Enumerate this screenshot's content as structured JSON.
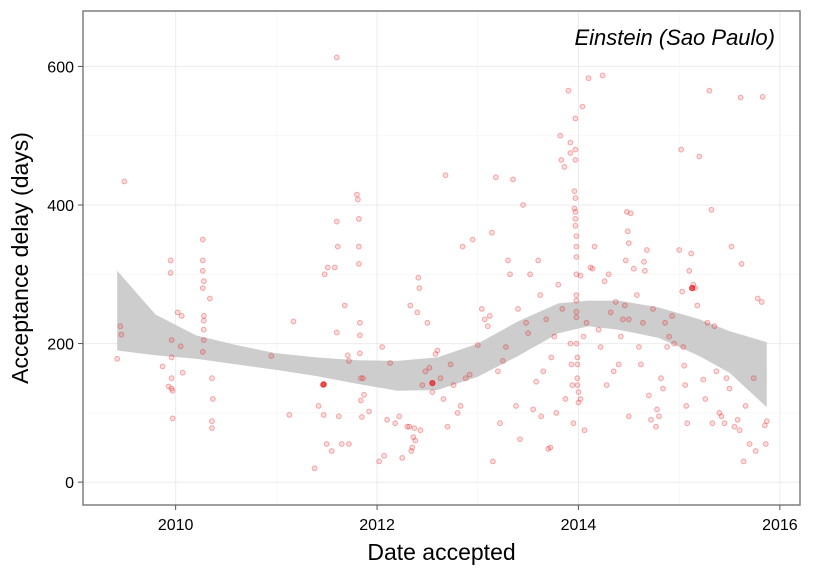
{
  "chart_data": {
    "type": "scatter",
    "annotation": "Einstein (Sao Paulo)",
    "xlabel": "Date accepted",
    "ylabel": "Acceptance delay (days)",
    "xlim": [
      2009.08,
      2016.2
    ],
    "ylim": [
      -33,
      680
    ],
    "x_ticks": [
      2010,
      2012,
      2014,
      2016
    ],
    "y_ticks": [
      0,
      200,
      400,
      600
    ],
    "grid": true,
    "colors": {
      "points": "#e41a1c",
      "ribbon": "#c8c8c8",
      "panel_border": "#7f7f7f",
      "grid": "#ebebeb"
    },
    "points": [
      [
        2009.42,
        178
      ],
      [
        2009.45,
        225
      ],
      [
        2009.46,
        213
      ],
      [
        2009.49,
        434
      ],
      [
        2009.87,
        167
      ],
      [
        2009.93,
        138
      ],
      [
        2009.95,
        320
      ],
      [
        2009.95,
        302
      ],
      [
        2009.96,
        205
      ],
      [
        2009.96,
        180
      ],
      [
        2009.96,
        150
      ],
      [
        2009.96,
        135
      ],
      [
        2009.97,
        92
      ],
      [
        2009.97,
        132
      ],
      [
        2010.02,
        245
      ],
      [
        2010.06,
        240
      ],
      [
        2010.07,
        158
      ],
      [
        2010.05,
        196
      ],
      [
        2010.27,
        350
      ],
      [
        2010.27,
        320
      ],
      [
        2010.27,
        305
      ],
      [
        2010.28,
        290
      ],
      [
        2010.27,
        280
      ],
      [
        2010.28,
        240
      ],
      [
        2010.28,
        233
      ],
      [
        2010.28,
        220
      ],
      [
        2010.28,
        205
      ],
      [
        2010.27,
        188
      ],
      [
        2010.34,
        265
      ],
      [
        2010.36,
        150
      ],
      [
        2010.37,
        120
      ],
      [
        2010.36,
        88
      ],
      [
        2010.36,
        78
      ],
      [
        2010.95,
        182
      ],
      [
        2011.13,
        97
      ],
      [
        2011.17,
        232
      ],
      [
        2011.38,
        20
      ],
      [
        2011.42,
        110
      ],
      [
        2011.46,
        140
      ],
      [
        2011.47,
        97
      ],
      [
        2011.48,
        300
      ],
      [
        2011.5,
        55
      ],
      [
        2011.51,
        310
      ],
      [
        2011.55,
        45
      ],
      [
        2011.58,
        310
      ],
      [
        2011.6,
        613
      ],
      [
        2011.6,
        376
      ],
      [
        2011.61,
        340
      ],
      [
        2011.6,
        216
      ],
      [
        2011.62,
        95
      ],
      [
        2011.65,
        55
      ],
      [
        2011.68,
        255
      ],
      [
        2011.71,
        183
      ],
      [
        2011.72,
        175
      ],
      [
        2011.72,
        55
      ],
      [
        2011.8,
        415
      ],
      [
        2011.81,
        408
      ],
      [
        2011.82,
        380
      ],
      [
        2011.82,
        340
      ],
      [
        2011.82,
        315
      ],
      [
        2011.83,
        230
      ],
      [
        2011.83,
        212
      ],
      [
        2011.83,
        186
      ],
      [
        2011.84,
        150
      ],
      [
        2011.84,
        118
      ],
      [
        2011.85,
        94
      ],
      [
        2011.86,
        150
      ],
      [
        2011.87,
        126
      ],
      [
        2011.92,
        102
      ],
      [
        2012.02,
        30
      ],
      [
        2012.05,
        195
      ],
      [
        2012.07,
        38
      ],
      [
        2012.1,
        90
      ],
      [
        2012.13,
        172
      ],
      [
        2012.18,
        85
      ],
      [
        2012.22,
        95
      ],
      [
        2012.25,
        35
      ],
      [
        2012.3,
        80
      ],
      [
        2012.32,
        80
      ],
      [
        2012.33,
        255
      ],
      [
        2012.34,
        45
      ],
      [
        2012.35,
        50
      ],
      [
        2012.36,
        65
      ],
      [
        2012.37,
        78
      ],
      [
        2012.38,
        60
      ],
      [
        2012.4,
        245
      ],
      [
        2012.41,
        295
      ],
      [
        2012.42,
        280
      ],
      [
        2012.43,
        75
      ],
      [
        2012.45,
        140
      ],
      [
        2012.48,
        160
      ],
      [
        2012.5,
        230
      ],
      [
        2012.52,
        165
      ],
      [
        2012.55,
        130
      ],
      [
        2012.58,
        185
      ],
      [
        2012.6,
        190
      ],
      [
        2012.63,
        150
      ],
      [
        2012.66,
        120
      ],
      [
        2012.68,
        443
      ],
      [
        2012.7,
        80
      ],
      [
        2012.73,
        170
      ],
      [
        2012.76,
        140
      ],
      [
        2012.8,
        100
      ],
      [
        2012.83,
        110
      ],
      [
        2012.85,
        340
      ],
      [
        2012.88,
        150
      ],
      [
        2012.92,
        155
      ],
      [
        2012.95,
        350
      ],
      [
        2013.0,
        198
      ],
      [
        2013.04,
        250
      ],
      [
        2013.07,
        235
      ],
      [
        2013.1,
        225
      ],
      [
        2013.12,
        240
      ],
      [
        2013.14,
        360
      ],
      [
        2013.15,
        30
      ],
      [
        2013.18,
        440
      ],
      [
        2013.2,
        160
      ],
      [
        2013.22,
        85
      ],
      [
        2013.25,
        175
      ],
      [
        2013.28,
        195
      ],
      [
        2013.3,
        320
      ],
      [
        2013.32,
        300
      ],
      [
        2013.35,
        437
      ],
      [
        2013.38,
        110
      ],
      [
        2013.4,
        250
      ],
      [
        2013.42,
        62
      ],
      [
        2013.45,
        400
      ],
      [
        2013.48,
        230
      ],
      [
        2013.5,
        215
      ],
      [
        2013.52,
        300
      ],
      [
        2013.55,
        105
      ],
      [
        2013.58,
        145
      ],
      [
        2013.6,
        320
      ],
      [
        2013.62,
        270
      ],
      [
        2013.63,
        95
      ],
      [
        2013.65,
        160
      ],
      [
        2013.68,
        235
      ],
      [
        2013.7,
        48
      ],
      [
        2013.72,
        50
      ],
      [
        2013.73,
        180
      ],
      [
        2013.76,
        210
      ],
      [
        2013.78,
        100
      ],
      [
        2013.8,
        285
      ],
      [
        2013.82,
        500
      ],
      [
        2013.83,
        465
      ],
      [
        2013.84,
        250
      ],
      [
        2013.86,
        455
      ],
      [
        2013.87,
        120
      ],
      [
        2013.9,
        565
      ],
      [
        2013.92,
        490
      ],
      [
        2013.92,
        475
      ],
      [
        2013.92,
        200
      ],
      [
        2013.93,
        170
      ],
      [
        2013.94,
        140
      ],
      [
        2013.95,
        85
      ],
      [
        2013.96,
        420
      ],
      [
        2013.96,
        395
      ],
      [
        2013.97,
        525
      ],
      [
        2013.97,
        480
      ],
      [
        2013.97,
        465
      ],
      [
        2013.97,
        410
      ],
      [
        2013.97,
        390
      ],
      [
        2013.97,
        380
      ],
      [
        2013.97,
        370
      ],
      [
        2013.98,
        355
      ],
      [
        2013.98,
        340
      ],
      [
        2013.98,
        325
      ],
      [
        2013.98,
        300
      ],
      [
        2013.98,
        270
      ],
      [
        2013.98,
        262
      ],
      [
        2013.98,
        246
      ],
      [
        2013.98,
        238
      ],
      [
        2013.98,
        200
      ],
      [
        2013.99,
        180
      ],
      [
        2013.99,
        170
      ],
      [
        2013.99,
        150
      ],
      [
        2013.99,
        140
      ],
      [
        2014.0,
        130
      ],
      [
        2014.0,
        115
      ],
      [
        2014.02,
        298
      ],
      [
        2014.02,
        120
      ],
      [
        2014.04,
        542
      ],
      [
        2014.05,
        210
      ],
      [
        2014.06,
        75
      ],
      [
        2014.08,
        230
      ],
      [
        2014.1,
        583
      ],
      [
        2014.12,
        310
      ],
      [
        2014.14,
        308
      ],
      [
        2014.16,
        340
      ],
      [
        2014.2,
        220
      ],
      [
        2014.22,
        195
      ],
      [
        2014.24,
        587
      ],
      [
        2014.26,
        290
      ],
      [
        2014.28,
        140
      ],
      [
        2014.3,
        300
      ],
      [
        2014.32,
        245
      ],
      [
        2014.35,
        160
      ],
      [
        2014.37,
        260
      ],
      [
        2014.4,
        170
      ],
      [
        2014.42,
        210
      ],
      [
        2014.44,
        235
      ],
      [
        2014.46,
        255
      ],
      [
        2014.47,
        320
      ],
      [
        2014.48,
        390
      ],
      [
        2014.49,
        362
      ],
      [
        2014.5,
        345
      ],
      [
        2014.5,
        235
      ],
      [
        2014.5,
        95
      ],
      [
        2014.52,
        388
      ],
      [
        2014.55,
        308
      ],
      [
        2014.58,
        270
      ],
      [
        2014.6,
        195
      ],
      [
        2014.62,
        170
      ],
      [
        2014.64,
        230
      ],
      [
        2014.65,
        318
      ],
      [
        2014.66,
        305
      ],
      [
        2014.68,
        335
      ],
      [
        2014.7,
        125
      ],
      [
        2014.72,
        90
      ],
      [
        2014.74,
        250
      ],
      [
        2014.77,
        80
      ],
      [
        2014.78,
        105
      ],
      [
        2014.8,
        95
      ],
      [
        2014.82,
        150
      ],
      [
        2014.84,
        135
      ],
      [
        2014.86,
        230
      ],
      [
        2014.88,
        195
      ],
      [
        2014.9,
        210
      ],
      [
        2014.93,
        240
      ],
      [
        2014.95,
        200
      ],
      [
        2015.0,
        335
      ],
      [
        2015.02,
        480
      ],
      [
        2015.03,
        275
      ],
      [
        2015.04,
        195
      ],
      [
        2015.05,
        168
      ],
      [
        2015.06,
        140
      ],
      [
        2015.07,
        110
      ],
      [
        2015.08,
        85
      ],
      [
        2015.1,
        305
      ],
      [
        2015.12,
        330
      ],
      [
        2015.14,
        285
      ],
      [
        2015.16,
        280
      ],
      [
        2015.18,
        255
      ],
      [
        2015.2,
        470
      ],
      [
        2015.24,
        148
      ],
      [
        2015.26,
        120
      ],
      [
        2015.28,
        230
      ],
      [
        2015.3,
        565
      ],
      [
        2015.32,
        393
      ],
      [
        2015.33,
        85
      ],
      [
        2015.35,
        225
      ],
      [
        2015.37,
        160
      ],
      [
        2015.4,
        100
      ],
      [
        2015.42,
        95
      ],
      [
        2015.45,
        85
      ],
      [
        2015.47,
        150
      ],
      [
        2015.5,
        135
      ],
      [
        2015.52,
        340
      ],
      [
        2015.55,
        80
      ],
      [
        2015.58,
        90
      ],
      [
        2015.6,
        75
      ],
      [
        2015.61,
        555
      ],
      [
        2015.62,
        315
      ],
      [
        2015.64,
        30
      ],
      [
        2015.66,
        110
      ],
      [
        2015.7,
        55
      ],
      [
        2015.74,
        150
      ],
      [
        2015.76,
        45
      ],
      [
        2015.78,
        265
      ],
      [
        2015.82,
        260
      ],
      [
        2015.83,
        556
      ],
      [
        2015.85,
        82
      ],
      [
        2015.86,
        55
      ],
      [
        2015.87,
        88
      ]
    ],
    "highlighted_points": [
      [
        2015.13,
        280
      ],
      [
        2011.47,
        141
      ],
      [
        2012.55,
        143
      ]
    ],
    "smooth_band": {
      "x": [
        2009.42,
        2009.8,
        2010.2,
        2010.6,
        2011.0,
        2011.4,
        2011.8,
        2012.2,
        2012.6,
        2013.0,
        2013.4,
        2013.8,
        2014.1,
        2014.4,
        2014.8,
        2015.2,
        2015.5,
        2015.87
      ],
      "ymin": [
        190,
        183,
        178,
        170,
        162,
        153,
        142,
        132,
        133,
        152,
        182,
        215,
        225,
        220,
        208,
        182,
        158,
        108
      ],
      "ymax": [
        305,
        242,
        212,
        198,
        186,
        180,
        176,
        175,
        180,
        200,
        232,
        258,
        262,
        262,
        252,
        235,
        218,
        202
      ]
    }
  }
}
